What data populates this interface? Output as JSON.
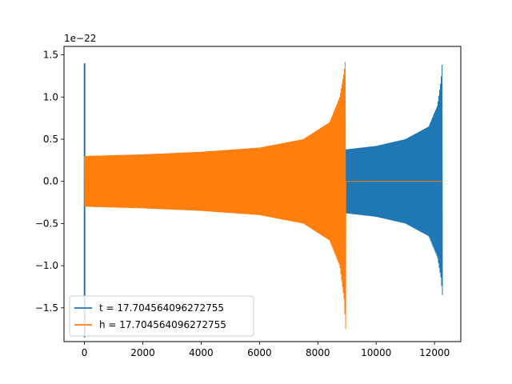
{
  "chart_data": {
    "type": "line",
    "title": "",
    "xlabel": "",
    "ylabel": "",
    "offset_text": "1e−22",
    "xlim": [
      -700,
      12900
    ],
    "ylim": [
      -1.9,
      1.6
    ],
    "x_ticks": [
      0,
      2000,
      4000,
      6000,
      8000,
      10000,
      12000
    ],
    "x_tick_labels": [
      "0",
      "2000",
      "4000",
      "6000",
      "8000",
      "10000",
      "12000"
    ],
    "y_ticks": [
      -1.5,
      -1.0,
      -0.5,
      0.0,
      0.5,
      1.0,
      1.5
    ],
    "y_tick_labels": [
      "−1.5",
      "−1.0",
      "−0.5",
      "0.0",
      "0.5",
      "1.0",
      "1.5"
    ],
    "legend_position": "lower-left",
    "grid": false,
    "series": [
      {
        "name": "t = 17.704564096272755",
        "color": "#1f77b4",
        "x_range": [
          0,
          12280
        ],
        "spike": {
          "x": 5,
          "min": -1.85,
          "max": 1.4
        },
        "envelope": [
          [
            0,
            0.3
          ],
          [
            3000,
            0.32
          ],
          [
            6000,
            0.36
          ],
          [
            8000,
            0.4
          ],
          [
            9000,
            0.38
          ],
          [
            10000,
            0.42
          ],
          [
            11000,
            0.5
          ],
          [
            11800,
            0.65
          ],
          [
            12100,
            0.9
          ],
          [
            12220,
            1.2
          ],
          [
            12270,
            1.45
          ]
        ],
        "envelope_lower": [
          [
            0,
            -0.3
          ],
          [
            3000,
            -0.32
          ],
          [
            6000,
            -0.36
          ],
          [
            8000,
            -0.4
          ],
          [
            9000,
            -0.38
          ],
          [
            10000,
            -0.42
          ],
          [
            11000,
            -0.5
          ],
          [
            11800,
            -0.65
          ],
          [
            12100,
            -0.9
          ],
          [
            12220,
            -1.15
          ],
          [
            12270,
            -1.35
          ]
        ]
      },
      {
        "name": "h = 17.704564096272755",
        "color": "#ff7f0e",
        "x_range": [
          0,
          12280
        ],
        "chirp_end": 8960,
        "envelope": [
          [
            0,
            0.3
          ],
          [
            2000,
            0.32
          ],
          [
            4000,
            0.35
          ],
          [
            6000,
            0.4
          ],
          [
            7500,
            0.5
          ],
          [
            8400,
            0.7
          ],
          [
            8750,
            1.0
          ],
          [
            8900,
            1.3
          ],
          [
            8950,
            1.45
          ]
        ],
        "envelope_lower": [
          [
            0,
            -0.3
          ],
          [
            2000,
            -0.32
          ],
          [
            4000,
            -0.35
          ],
          [
            6000,
            -0.4
          ],
          [
            7500,
            -0.5
          ],
          [
            8400,
            -0.7
          ],
          [
            8750,
            -1.0
          ],
          [
            8900,
            -1.4
          ],
          [
            8950,
            -1.75
          ]
        ],
        "flat_after": 0.0
      }
    ]
  }
}
